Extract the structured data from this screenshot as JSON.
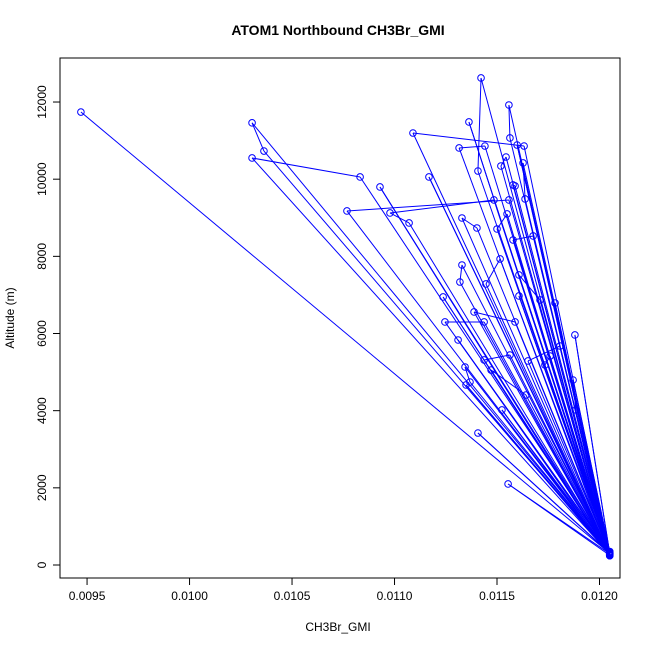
{
  "chart_data": {
    "type": "scatter",
    "title": "ATOM1 Northbound CH3Br_GMI",
    "xlabel": "CH3Br_GMI",
    "ylabel": "Altitude (m)",
    "xlim": [
      0.009368,
      0.0121
    ],
    "ylim": [
      -337,
      13141
    ],
    "x_ticks": [
      0.0095,
      0.01,
      0.0105,
      0.011,
      0.0115,
      0.012
    ],
    "x_tick_labels": [
      "0.0095",
      "0.0100",
      "0.0105",
      "0.0110",
      "0.0115",
      "0.0120"
    ],
    "y_ticks": [
      0,
      2000,
      4000,
      6000,
      8000,
      10000,
      12000
    ],
    "y_tick_labels": [
      "0",
      "2000",
      "4000",
      "6000",
      "8000",
      "10000",
      "12000"
    ],
    "grid": false,
    "color": "#0000ff",
    "mode": "lines+markers",
    "points": [
      [
        0.00947,
        11740
      ],
      [
        0.01205,
        300
      ],
      [
        0.010305,
        11460
      ],
      [
        0.010363,
        10730
      ],
      [
        0.01205,
        280
      ],
      [
        0.010305,
        10550
      ],
      [
        0.010832,
        10057
      ],
      [
        0.01205,
        320
      ],
      [
        0.010929,
        9798
      ],
      [
        0.01205,
        260
      ],
      [
        0.01109,
        11197
      ],
      [
        0.011632,
        10860
      ],
      [
        0.01205,
        300
      ],
      [
        0.011363,
        11483
      ],
      [
        0.01205,
        240
      ],
      [
        0.011422,
        12623
      ],
      [
        0.011407,
        10212
      ],
      [
        0.01205,
        310
      ],
      [
        0.011558,
        11923
      ],
      [
        0.011563,
        11068
      ],
      [
        0.01205,
        270
      ],
      [
        0.011598,
        10886
      ],
      [
        0.01205,
        330
      ],
      [
        0.011441,
        10860
      ],
      [
        0.011315,
        10809
      ],
      [
        0.01205,
        250
      ],
      [
        0.011519,
        10342
      ],
      [
        0.011544,
        10575
      ],
      [
        0.01205,
        290
      ],
      [
        0.011578,
        9850
      ],
      [
        0.011588,
        9824
      ],
      [
        0.01205,
        350
      ],
      [
        0.011627,
        10420
      ],
      [
        0.011637,
        9487
      ],
      [
        0.01205,
        280
      ],
      [
        0.010768,
        9176
      ],
      [
        0.011558,
        9461
      ],
      [
        0.01205,
        300
      ],
      [
        0.011168,
        10057
      ],
      [
        0.01205,
        260
      ],
      [
        0.011329,
        8994
      ],
      [
        0.011402,
        8735
      ],
      [
        0.01205,
        320
      ],
      [
        0.0115,
        8709
      ],
      [
        0.011549,
        9098
      ],
      [
        0.01205,
        240
      ],
      [
        0.011578,
        8424
      ],
      [
        0.011676,
        8528
      ],
      [
        0.01205,
        300
      ],
      [
        0.011237,
        6947
      ],
      [
        0.01205,
        280
      ],
      [
        0.011319,
        7335
      ],
      [
        0.011329,
        7776
      ],
      [
        0.01205,
        310
      ],
      [
        0.011071,
        8865
      ],
      [
        0.010978,
        9124
      ],
      [
        0.011485,
        9461
      ],
      [
        0.01205,
        270
      ],
      [
        0.011446,
        7284
      ],
      [
        0.011515,
        7932
      ],
      [
        0.01205,
        330
      ],
      [
        0.011607,
        7517
      ],
      [
        0.01171,
        6869
      ],
      [
        0.01205,
        250
      ],
      [
        0.011783,
        6791
      ],
      [
        0.01205,
        290
      ],
      [
        0.01188,
        5962
      ],
      [
        0.01205,
        300
      ],
      [
        0.011588,
        6299
      ],
      [
        0.011388,
        6558
      ],
      [
        0.01205,
        280
      ],
      [
        0.011437,
        6299
      ],
      [
        0.011246,
        6299
      ],
      [
        0.01205,
        320
      ],
      [
        0.01131,
        5832
      ],
      [
        0.01205,
        260
      ],
      [
        0.011437,
        5314
      ],
      [
        0.011563,
        5443
      ],
      [
        0.01205,
        300
      ],
      [
        0.011651,
        5288
      ],
      [
        0.011807,
        5676
      ],
      [
        0.01205,
        340
      ],
      [
        0.011871,
        4795
      ],
      [
        0.011885,
        4018
      ],
      [
        0.01205,
        270
      ],
      [
        0.011344,
        5132
      ],
      [
        0.011368,
        4743
      ],
      [
        0.01205,
        300
      ],
      [
        0.011407,
        3421
      ],
      [
        0.01205,
        310
      ],
      [
        0.011524,
        4018
      ],
      [
        0.01205,
        250
      ],
      [
        0.011554,
        2100
      ],
      [
        0.01205,
        290
      ],
      [
        0.011734,
        5184
      ],
      [
        0.011759,
        5417
      ],
      [
        0.01205,
        320
      ],
      [
        0.011607,
        6973
      ],
      [
        0.01205,
        280
      ],
      [
        0.011471,
        5054
      ],
      [
        0.011641,
        4406
      ],
      [
        0.01205,
        300
      ],
      [
        0.011349,
        4666
      ],
      [
        0.01205,
        260
      ]
    ]
  }
}
